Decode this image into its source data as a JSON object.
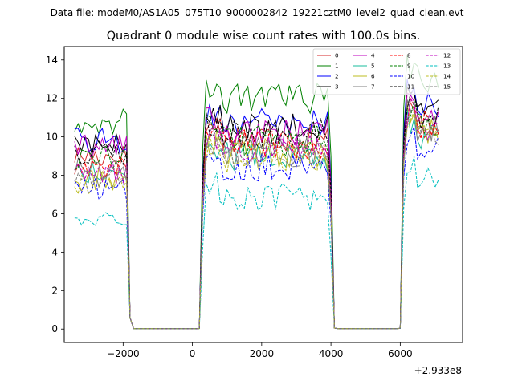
{
  "chart_data": {
    "type": "line",
    "suptitle": "Data file: modeM0/AS1A05_075T10_9000002842_19221cztM0_level2_quad_clean.evt",
    "title": "Quadrant 0 module wise count rates with 100.0s bins.",
    "xlabel": "",
    "ylabel": "",
    "x_offset_label": "+2.933e8",
    "xlim": [
      -3700,
      7800
    ],
    "ylim": [
      -0.7,
      14.7
    ],
    "x_ticks": [
      -2000,
      0,
      2000,
      4000,
      6000
    ],
    "x_tick_labels": [
      "−2000",
      "0",
      "2000",
      "4000",
      "6000"
    ],
    "y_ticks": [
      0,
      2,
      4,
      6,
      8,
      10,
      12,
      14
    ],
    "y_tick_labels": [
      "0",
      "2",
      "4",
      "6",
      "8",
      "10",
      "12",
      "14"
    ],
    "legend_position": "top-right",
    "segments": [
      {
        "start": -3400,
        "end": -1900
      },
      {
        "start": 400,
        "end": 3900
      },
      {
        "start": 6200,
        "end": 7100
      }
    ],
    "gaps": [
      {
        "start": -1800,
        "end": 200
      },
      {
        "start": 4100,
        "end": 6000
      }
    ],
    "series": [
      {
        "name": "0",
        "color": "#d62728",
        "dash": "solid",
        "levels": [
          9.0,
          10.0,
          10.6
        ]
      },
      {
        "name": "1",
        "color": "#008000",
        "dash": "solid",
        "levels": [
          10.8,
          12.0,
          13.0
        ]
      },
      {
        "name": "2",
        "color": "#0000ff",
        "dash": "solid",
        "levels": [
          9.8,
          10.7,
          11.7
        ]
      },
      {
        "name": "3",
        "color": "#000000",
        "dash": "solid",
        "levels": [
          9.6,
          10.4,
          11.3
        ]
      },
      {
        "name": "4",
        "color": "#bf00bf",
        "dash": "solid",
        "levels": [
          9.5,
          10.2,
          10.9
        ]
      },
      {
        "name": "5",
        "color": "#1abc9c",
        "dash": "solid",
        "levels": [
          8.2,
          9.0,
          10.0
        ]
      },
      {
        "name": "6",
        "color": "#bcbd22",
        "dash": "solid",
        "levels": [
          7.8,
          9.1,
          10.2
        ]
      },
      {
        "name": "7",
        "color": "#7f7f7f",
        "dash": "solid",
        "levels": [
          8.3,
          9.3,
          10.4
        ]
      },
      {
        "name": "8",
        "color": "#ff0000",
        "dash": "dashed",
        "levels": [
          8.5,
          9.6,
          10.6
        ]
      },
      {
        "name": "9",
        "color": "#008000",
        "dash": "dashed",
        "levels": [
          8.9,
          9.8,
          10.8
        ]
      },
      {
        "name": "10",
        "color": "#0000ff",
        "dash": "dashed",
        "levels": [
          7.2,
          8.5,
          9.4
        ]
      },
      {
        "name": "11",
        "color": "#000000",
        "dash": "dashed",
        "levels": [
          9.2,
          10.2,
          11.2
        ]
      },
      {
        "name": "12",
        "color": "#bf00bf",
        "dash": "dashed",
        "levels": [
          8.1,
          9.4,
          10.5
        ]
      },
      {
        "name": "13",
        "color": "#00bfbf",
        "dash": "dashed",
        "levels": [
          5.8,
          6.8,
          7.8
        ]
      },
      {
        "name": "14",
        "color": "#bcbd22",
        "dash": "dashed",
        "levels": [
          7.6,
          8.9,
          10.1
        ]
      },
      {
        "name": "15",
        "color": "#7f7f7f",
        "dash": "dashed",
        "levels": [
          7.9,
          9.0,
          10.1
        ]
      }
    ]
  }
}
